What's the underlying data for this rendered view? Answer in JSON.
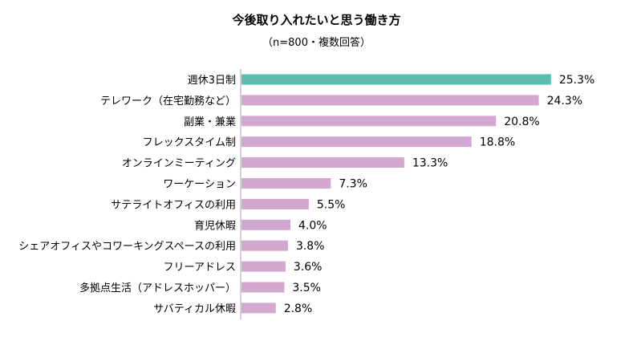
{
  "chart_data": {
    "type": "bar",
    "orientation": "horizontal",
    "title": "今後取り入れたいと思う働き方",
    "subtitle": "（n=800・複数回答）",
    "categories": [
      "週休3日制",
      "テレワーク（在宅勤務など）",
      "副業・兼業",
      "フレックスタイム制",
      "オンラインミーティング",
      "ワーケーション",
      "サテライトオフィスの利用",
      "育児休暇",
      "シェアオフィスやコワーキングスペースの利用",
      "フリーアドレス",
      "多拠点生活（アドレスホッパー）",
      "サバティカル休暇"
    ],
    "values": [
      25.3,
      24.3,
      20.8,
      18.8,
      13.3,
      7.3,
      5.5,
      4.0,
      3.8,
      3.6,
      3.5,
      2.8
    ],
    "data_labels": [
      "25.3%",
      "24.3%",
      "20.8%",
      "18.8%",
      "13.3%",
      "7.3%",
      "5.5%",
      "4.0%",
      "3.8%",
      "3.6%",
      "3.5%",
      "2.8%"
    ],
    "highlight_index": 0,
    "colors": {
      "highlight": "#5bbcb0",
      "default": "#d2a8d0",
      "axis": "#a6a6a6"
    },
    "xlim": [
      0,
      27
    ],
    "grid": false,
    "legend": "none"
  }
}
